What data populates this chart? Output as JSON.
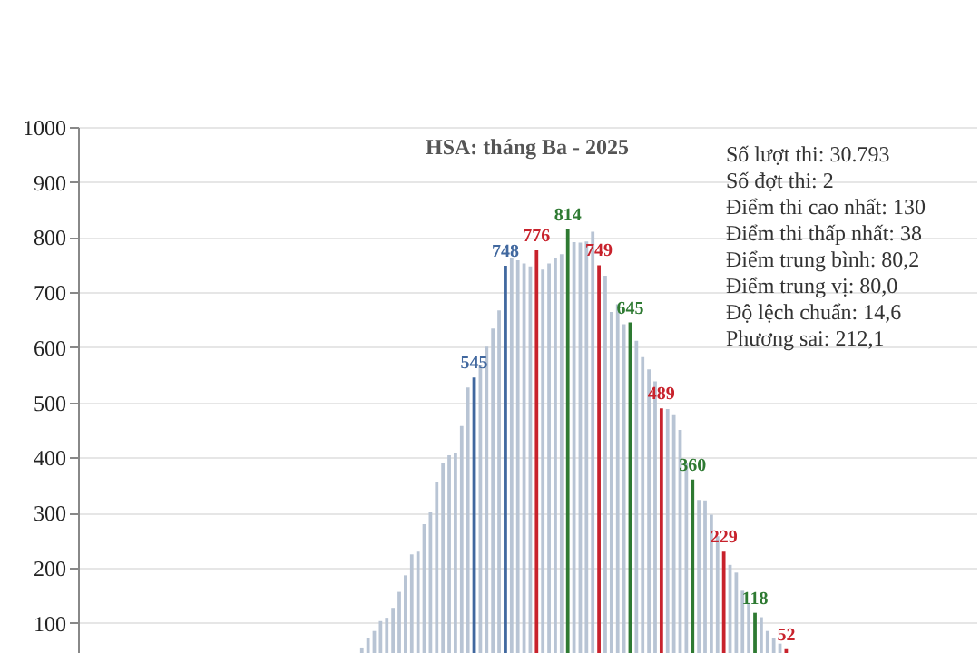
{
  "chart_data": {
    "type": "bar",
    "title": "HSA: tháng Ba - 2025",
    "categories": [
      null,
      null,
      null,
      null,
      null,
      null,
      null,
      null,
      null,
      null,
      null,
      null,
      null,
      null,
      null,
      null,
      null,
      null,
      null,
      null,
      null,
      null,
      null,
      null,
      null,
      null,
      null,
      null,
      null,
      null,
      null,
      null,
      null,
      null,
      null,
      null,
      null,
      null,
      null,
      null,
      null,
      null,
      null,
      null,
      null,
      null,
      null,
      null,
      null,
      null,
      null,
      null,
      null,
      null,
      null,
      null,
      null,
      null,
      null,
      null,
      null,
      null,
      null,
      null,
      null,
      null,
      null,
      null,
      null,
      null,
      null,
      null,
      null,
      null,
      null,
      null,
      null,
      null,
      null,
      null,
      null,
      null,
      null,
      null,
      null,
      null,
      null,
      null,
      null,
      null,
      null,
      null,
      null,
      null,
      null,
      null,
      null,
      null,
      null,
      null,
      null,
      null,
      null,
      null,
      null,
      null,
      null,
      null,
      null,
      null,
      null,
      null,
      null,
      null,
      null,
      null,
      null,
      null,
      null,
      null,
      null,
      null,
      null,
      null,
      null,
      null,
      null,
      null,
      null,
      null,
      null,
      null,
      null,
      null,
      null,
      null,
      null,
      null,
      null,
      null,
      null,
      null,
      null,
      null
    ],
    "values": [
      null,
      null,
      null,
      null,
      null,
      null,
      null,
      null,
      null,
      null,
      null,
      null,
      null,
      null,
      null,
      null,
      null,
      null,
      null,
      null,
      null,
      null,
      null,
      null,
      null,
      null,
      null,
      null,
      null,
      null,
      null,
      null,
      null,
      null,
      null,
      null,
      null,
      null,
      null,
      null,
      null,
      null,
      null,
      null,
      null,
      55,
      72,
      85,
      103,
      109,
      127,
      156,
      186,
      224,
      229,
      279,
      301,
      356,
      389,
      404,
      408,
      457,
      527,
      545,
      568,
      601,
      634,
      667,
      748,
      763,
      758,
      752,
      747,
      776,
      741,
      752,
      763,
      769,
      814,
      791,
      790,
      792,
      810,
      749,
      730,
      664,
      678,
      642,
      645,
      612,
      582,
      560,
      538,
      489,
      488,
      477,
      450,
      389,
      360,
      323,
      322,
      296,
      257,
      229,
      205,
      191,
      158,
      136,
      118,
      110,
      85,
      72,
      62,
      52,
      null,
      null,
      null,
      null,
      null,
      null,
      null,
      null,
      null,
      null,
      null,
      null,
      null,
      null,
      null,
      null,
      null,
      null,
      null,
      null,
      null,
      null,
      null,
      null,
      null,
      null,
      null,
      null,
      null,
      null
    ],
    "colors": [
      "#b8c4d4",
      "#b8c4d4",
      "#b8c4d4",
      "#b8c4d4",
      "#b8c4d4",
      "#b8c4d4",
      "#b8c4d4",
      "#b8c4d4",
      "#b8c4d4",
      "#b8c4d4",
      "#b8c4d4",
      "#b8c4d4",
      "#b8c4d4",
      "#b8c4d4",
      "#b8c4d4",
      "#b8c4d4",
      "#b8c4d4",
      "#b8c4d4",
      "#b8c4d4",
      "#b8c4d4",
      "#b8c4d4",
      "#b8c4d4",
      "#b8c4d4",
      "#b8c4d4",
      "#b8c4d4",
      "#b8c4d4",
      "#b8c4d4",
      "#b8c4d4",
      "#b8c4d4",
      "#b8c4d4",
      "#b8c4d4",
      "#b8c4d4",
      "#b8c4d4",
      "#b8c4d4",
      "#b8c4d4",
      "#b8c4d4",
      "#b8c4d4",
      "#b8c4d4",
      "#b8c4d4",
      "#b8c4d4",
      "#b8c4d4",
      "#b8c4d4",
      "#b8c4d4",
      "#b8c4d4",
      "#b8c4d4",
      "#b8c4d4",
      "#b8c4d4",
      "#b8c4d4",
      "#b8c4d4",
      "#b8c4d4",
      "#b8c4d4",
      "#b8c4d4",
      "#b8c4d4",
      "#b8c4d4",
      "#b8c4d4",
      "#b8c4d4",
      "#b8c4d4",
      "#b8c4d4",
      "#b8c4d4",
      "#b8c4d4",
      "#b8c4d4",
      "#b8c4d4",
      "#b8c4d4",
      "#41689f",
      "#b8c4d4",
      "#b8c4d4",
      "#b8c4d4",
      "#b8c4d4",
      "#41689f",
      "#b8c4d4",
      "#b8c4d4",
      "#b8c4d4",
      "#b8c4d4",
      "#c8222c",
      "#b8c4d4",
      "#b8c4d4",
      "#b8c4d4",
      "#b8c4d4",
      "#2e7a32",
      "#b8c4d4",
      "#b8c4d4",
      "#b8c4d4",
      "#b8c4d4",
      "#c8222c",
      "#b8c4d4",
      "#b8c4d4",
      "#b8c4d4",
      "#b8c4d4",
      "#2e7a32",
      "#b8c4d4",
      "#b8c4d4",
      "#b8c4d4",
      "#b8c4d4",
      "#c8222c",
      "#b8c4d4",
      "#b8c4d4",
      "#b8c4d4",
      "#b8c4d4",
      "#2e7a32",
      "#b8c4d4",
      "#b8c4d4",
      "#b8c4d4",
      "#b8c4d4",
      "#c8222c",
      "#b8c4d4",
      "#b8c4d4",
      "#b8c4d4",
      "#b8c4d4",
      "#2e7a32",
      "#b8c4d4",
      "#b8c4d4",
      "#b8c4d4",
      "#b8c4d4",
      "#c8222c",
      "#b8c4d4",
      "#b8c4d4",
      "#b8c4d4",
      "#b8c4d4",
      "#b8c4d4",
      "#b8c4d4",
      "#b8c4d4",
      "#b8c4d4",
      "#b8c4d4",
      "#b8c4d4",
      "#b8c4d4",
      "#b8c4d4",
      "#b8c4d4",
      "#b8c4d4",
      "#b8c4d4",
      "#b8c4d4",
      "#b8c4d4",
      "#b8c4d4",
      "#b8c4d4",
      "#b8c4d4",
      "#b8c4d4",
      "#b8c4d4",
      "#b8c4d4",
      "#b8c4d4",
      "#b8c4d4",
      "#b8c4d4",
      "#b8c4d4",
      "#b8c4d4",
      "#b8c4d4",
      "#b8c4d4"
    ],
    "value_labels": [
      null,
      null,
      null,
      null,
      null,
      null,
      null,
      null,
      null,
      null,
      null,
      null,
      null,
      null,
      null,
      null,
      null,
      null,
      null,
      null,
      null,
      null,
      null,
      null,
      null,
      null,
      null,
      null,
      null,
      null,
      null,
      null,
      null,
      null,
      null,
      null,
      null,
      null,
      null,
      null,
      null,
      null,
      null,
      null,
      null,
      null,
      null,
      null,
      null,
      null,
      null,
      null,
      null,
      null,
      null,
      null,
      null,
      null,
      null,
      null,
      null,
      null,
      null,
      "545",
      null,
      null,
      null,
      null,
      "748",
      null,
      null,
      null,
      null,
      "776",
      null,
      null,
      null,
      null,
      "814",
      null,
      null,
      null,
      null,
      "749",
      null,
      null,
      null,
      null,
      "645",
      null,
      null,
      null,
      null,
      "489",
      null,
      null,
      null,
      null,
      "360",
      null,
      null,
      null,
      null,
      "229",
      null,
      null,
      null,
      null,
      "118",
      null,
      null,
      null,
      null,
      "52",
      null,
      null,
      null,
      null,
      null,
      null,
      null,
      null,
      null,
      null,
      null,
      null,
      null,
      null,
      null,
      null,
      null,
      null,
      null,
      null,
      null,
      null,
      null,
      null,
      null,
      null,
      null,
      null,
      null,
      null
    ],
    "ylim": [
      45,
      1000
    ],
    "yticks": [
      100,
      200,
      300,
      400,
      500,
      600,
      700,
      800,
      900,
      1000
    ],
    "grid": "y",
    "tick_labels": "y",
    "annotations": [
      "Số lượt thi: 30.793",
      "Số đợt thi: 2",
      "Điểm thi cao nhất: 130",
      "Điểm thi thấp nhất: 38",
      "Điểm trung bình: 80,2",
      "Điểm trung vị: 80,0",
      "Độ lệch chuẩn: 14,6",
      "Phương sai: 212,1"
    ]
  }
}
